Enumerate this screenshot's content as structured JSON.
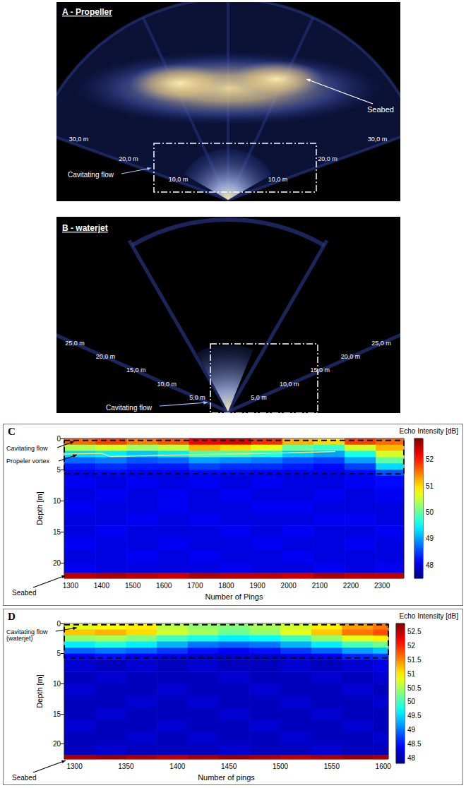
{
  "sonar_images": [
    {
      "title": "A - Propeller",
      "range_labels": [
        {
          "value": 10,
          "label": "10,0 m"
        },
        {
          "value": 20,
          "label": "20,0 m"
        },
        {
          "value": 30,
          "label": "30,0 m"
        }
      ],
      "annotations": {
        "cavitation": "Cavitating flow",
        "seabed": "Seabed"
      }
    },
    {
      "title": "B - waterjet",
      "range_labels": [
        {
          "value": 5,
          "label": "5,0 m"
        },
        {
          "value": 10,
          "label": "10,0 m"
        },
        {
          "value": 15,
          "label": "15,0 m"
        },
        {
          "value": 20,
          "label": "20,0 m"
        },
        {
          "value": 25,
          "label": "25,0 m"
        }
      ],
      "annotations": {
        "cavitation": "Cavitating flow"
      }
    }
  ],
  "chart_data": [
    {
      "type": "heatmap",
      "panel": "C",
      "x_label": "Number of Pings",
      "y_label": "Depth [m]",
      "xlim": [
        1280,
        2370
      ],
      "xticks": [
        1300,
        1400,
        1500,
        1600,
        1700,
        1800,
        1900,
        2000,
        2100,
        2200,
        2300
      ],
      "ylim": [
        0,
        22.5
      ],
      "yticks": [
        0,
        5,
        10,
        15,
        20
      ],
      "x_bins": [
        1280,
        1380,
        1480,
        1580,
        1680,
        1780,
        1880,
        1980,
        2080,
        2180,
        2280,
        2370
      ],
      "y_bins": [
        0,
        1,
        2,
        3,
        4,
        5,
        6,
        8,
        10,
        12,
        14,
        16,
        18,
        20,
        21.6,
        22.5
      ],
      "cells": [
        [
          51.6,
          51.8,
          51.5,
          51.7,
          52.2,
          52.3,
          51.9,
          51.2,
          51.0,
          51.8,
          51.6
        ],
        [
          50.4,
          50.6,
          50.3,
          50.5,
          51.2,
          51.0,
          50.7,
          50.0,
          49.8,
          50.6,
          51.2
        ],
        [
          49.3,
          49.4,
          49.2,
          49.4,
          49.9,
          49.8,
          49.6,
          49.2,
          49.0,
          49.6,
          50.6
        ],
        [
          48.7,
          48.8,
          48.6,
          48.7,
          49.0,
          48.9,
          48.8,
          48.6,
          48.5,
          49.0,
          50.0
        ],
        [
          48.3,
          48.4,
          48.3,
          48.3,
          48.5,
          48.4,
          48.4,
          48.3,
          48.2,
          48.5,
          49.3
        ],
        [
          48.1,
          48.2,
          48.1,
          48.1,
          48.2,
          48.2,
          48.1,
          48.1,
          48.1,
          48.2,
          48.6
        ],
        [
          48.1,
          48.0,
          48.1,
          48.0,
          48.1,
          48.0,
          48.1,
          48.0,
          48.0,
          48.1,
          48.2
        ],
        [
          48.0,
          48.1,
          48.0,
          48.1,
          48.0,
          48.1,
          48.0,
          48.0,
          48.1,
          48.0,
          48.1
        ],
        [
          48.1,
          48.0,
          48.0,
          48.1,
          48.0,
          48.0,
          48.1,
          48.1,
          48.0,
          48.0,
          48.0
        ],
        [
          48.0,
          48.0,
          48.1,
          48.0,
          48.1,
          48.0,
          48.0,
          48.0,
          48.1,
          48.1,
          48.0
        ],
        [
          48.0,
          48.1,
          48.0,
          48.0,
          48.0,
          48.1,
          48.0,
          48.1,
          48.0,
          48.0,
          48.1
        ],
        [
          48.1,
          48.0,
          48.0,
          48.1,
          48.0,
          48.0,
          48.1,
          48.0,
          48.0,
          48.1,
          48.0
        ],
        [
          48.0,
          48.0,
          48.1,
          48.0,
          48.1,
          48.0,
          48.0,
          48.1,
          48.0,
          48.0,
          48.0
        ],
        [
          48.1,
          48.0,
          48.0,
          48.0,
          48.0,
          48.1,
          48.0,
          48.0,
          48.1,
          48.0,
          48.1
        ],
        [
          52.5,
          52.6,
          52.5,
          52.4,
          52.6,
          52.5,
          52.5,
          52.4,
          52.6,
          52.5,
          52.5
        ]
      ],
      "colorbar": {
        "label": "Echo Intensity [dB]",
        "lim": [
          47.5,
          52.8
        ],
        "ticks": [
          48,
          49,
          50,
          51,
          52
        ]
      },
      "lines": [
        {
          "x": [
            1280,
            1400,
            1430,
            1600,
            1800,
            2000,
            2150
          ],
          "values": [
            2.5,
            2.4,
            2.9,
            2.7,
            2.5,
            2.3,
            2.1
          ]
        }
      ],
      "box_depth": [
        0.3,
        5.7
      ],
      "annotations": {
        "cavitation": "Cavitating flow",
        "vortex": "Propeler vortex",
        "seabed": "Seabed"
      }
    },
    {
      "type": "heatmap",
      "panel": "D",
      "x_label": "Number of pings",
      "y_label": "Depth [m]",
      "xlim": [
        1290,
        1605
      ],
      "xticks": [
        1300,
        1350,
        1400,
        1450,
        1500,
        1550,
        1600
      ],
      "ylim": [
        0,
        22.5
      ],
      "yticks": [
        0,
        5,
        10,
        15,
        20
      ],
      "x_bins": [
        1290,
        1320,
        1350,
        1380,
        1410,
        1440,
        1470,
        1500,
        1530,
        1560,
        1590,
        1605
      ],
      "y_bins": [
        0,
        1,
        2,
        3,
        4,
        5,
        6,
        8,
        10,
        12,
        14,
        16,
        18,
        20,
        21.8,
        22.5
      ],
      "cells": [
        [
          50.8,
          50.9,
          51.0,
          50.6,
          50.4,
          50.3,
          50.5,
          50.7,
          51.0,
          51.4,
          51.6
        ],
        [
          51.2,
          51.3,
          51.1,
          50.7,
          50.5,
          50.2,
          50.4,
          50.8,
          51.2,
          51.6,
          51.8
        ],
        [
          50.4,
          50.5,
          50.3,
          50.0,
          49.8,
          49.6,
          49.7,
          50.0,
          50.4,
          50.8,
          51.0
        ],
        [
          49.6,
          49.8,
          49.6,
          49.3,
          49.0,
          48.9,
          49.0,
          49.3,
          49.6,
          50.0,
          50.2
        ],
        [
          48.9,
          49.0,
          48.9,
          48.7,
          48.5,
          48.4,
          48.5,
          48.7,
          48.9,
          49.2,
          49.4
        ],
        [
          48.4,
          48.5,
          48.4,
          48.3,
          48.2,
          48.2,
          48.2,
          48.3,
          48.4,
          48.6,
          48.7
        ],
        [
          48.2,
          48.1,
          48.2,
          48.1,
          48.2,
          48.1,
          48.1,
          48.2,
          48.1,
          48.2,
          48.3
        ],
        [
          48.1,
          48.2,
          48.1,
          48.1,
          48.1,
          48.2,
          48.1,
          48.1,
          48.2,
          48.1,
          48.2
        ],
        [
          48.2,
          48.1,
          48.1,
          48.2,
          48.1,
          48.1,
          48.2,
          48.1,
          48.1,
          48.2,
          48.1
        ],
        [
          48.1,
          48.1,
          48.2,
          48.1,
          48.2,
          48.1,
          48.1,
          48.2,
          48.1,
          48.1,
          48.2
        ],
        [
          48.1,
          48.2,
          48.1,
          48.1,
          48.1,
          48.2,
          48.1,
          48.1,
          48.2,
          48.1,
          48.1
        ],
        [
          48.2,
          48.1,
          48.1,
          48.2,
          48.1,
          48.1,
          48.2,
          48.1,
          48.1,
          48.2,
          48.1
        ],
        [
          48.1,
          48.1,
          48.2,
          48.1,
          48.2,
          48.1,
          48.1,
          48.2,
          48.1,
          48.1,
          48.2
        ],
        [
          48.1,
          48.2,
          48.1,
          48.1,
          48.1,
          48.2,
          48.1,
          48.1,
          48.2,
          48.1,
          48.1
        ],
        [
          52.6,
          52.7,
          52.6,
          52.5,
          52.6,
          52.7,
          52.6,
          52.5,
          52.6,
          52.7,
          52.6
        ]
      ],
      "colorbar": {
        "label": "Echo Intensity [dB]",
        "lim": [
          47.8,
          52.8
        ],
        "ticks": [
          48,
          48.5,
          49,
          49.5,
          50,
          50.5,
          51,
          51.5,
          52,
          52.5
        ]
      },
      "box_depth": [
        0.2,
        5.7
      ],
      "annotations": {
        "cavitation": "Cavitating flow\n(waterjet)",
        "seabed": "Seabed"
      }
    }
  ]
}
